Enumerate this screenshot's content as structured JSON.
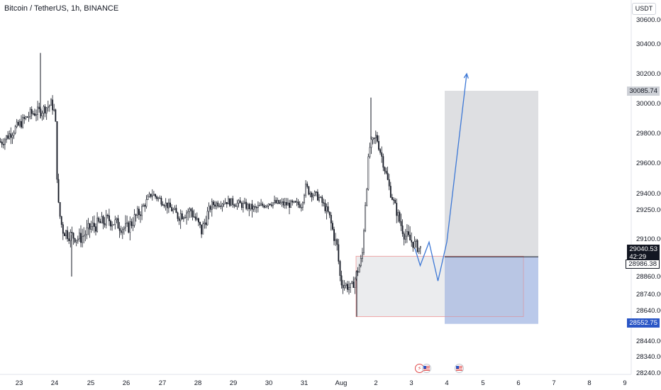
{
  "header": {
    "title": "Bitcoin / TetherUS, 1h, BINANCE"
  },
  "currency_label": "USDT",
  "price_labels": {
    "target": "30085.74",
    "current_price": "29040.53",
    "countdown": "42:29",
    "entry": "28986.38",
    "stop": "28552.75"
  },
  "colors": {
    "candle": "#131722",
    "target_zone": "#dcdde0",
    "stop_zone": "#aebfe6",
    "stop_zone_dark": "#9fb1e0",
    "projection": "#3d78d6",
    "accum_box": "#e4e5e8",
    "accum_border": "#f08a8a",
    "grid_text": "#131722",
    "axis_line": "#e0e3eb"
  },
  "event_icons": [
    "lightning-icon",
    "us-flag-icon",
    "us-flag-icon"
  ],
  "chart_data": {
    "type": "candlestick",
    "title": "Bitcoin / TetherUS, 1h, BINANCE",
    "xlabel": "",
    "ylabel": "",
    "x_ticks": [
      "23",
      "24",
      "25",
      "26",
      "27",
      "28",
      "29",
      "30",
      "31",
      "Aug",
      "2",
      "3",
      "4",
      "5",
      "6",
      "7",
      "8",
      "9"
    ],
    "y_ticks": [
      28240.0,
      28340.0,
      28440.0,
      28640.0,
      28740.0,
      28860.0,
      29100.0,
      29250.0,
      29400.0,
      29600.0,
      29800.0,
      30000.0,
      30200.0,
      30400.0,
      30600.0
    ],
    "ylim": [
      28220,
      30650
    ],
    "price_path": [
      [
        "23",
        29860
      ],
      [
        "23.3",
        29930
      ],
      [
        "23.6",
        29950
      ],
      [
        "23.9",
        30000
      ],
      [
        "24.0",
        29920
      ],
      [
        "24.05",
        29520
      ],
      [
        "24.1",
        29250
      ],
      [
        "24.2",
        29150
      ],
      [
        "24.4",
        29120
      ],
      [
        "24.7",
        29100
      ],
      [
        "25.0",
        29160
      ],
      [
        "25.5",
        29200
      ],
      [
        "26.0",
        29150
      ],
      [
        "26.4",
        29250
      ],
      [
        "26.7",
        29400
      ],
      [
        "27.0",
        29330
      ],
      [
        "27.4",
        29220
      ],
      [
        "27.8",
        29250
      ],
      [
        "28.1",
        29140
      ],
      [
        "28.4",
        29300
      ],
      [
        "28.8",
        29330
      ],
      [
        "29.2",
        29300
      ],
      [
        "29.6",
        29260
      ],
      [
        "30.0",
        29320
      ],
      [
        "30.5",
        29300
      ],
      [
        "30.9",
        29300
      ],
      [
        "31.0",
        29440
      ],
      [
        "31.4",
        29360
      ],
      [
        "31.7",
        29200
      ],
      [
        "31.9",
        29050
      ],
      [
        "Aug",
        28820
      ],
      [
        "1.3",
        28780
      ],
      [
        "1.6",
        28980
      ],
      [
        "1.8",
        29700
      ],
      [
        "2.0",
        29780
      ],
      [
        "2.2",
        29600
      ],
      [
        "2.4",
        29400
      ],
      [
        "2.6",
        29220
      ],
      [
        "2.8",
        29120
      ],
      [
        "3.0",
        29080
      ],
      [
        "3.2",
        29040
      ]
    ],
    "price_range_low": 28552.75,
    "price_range_high": 30650,
    "position": {
      "type": "long",
      "entry": 28986.38,
      "target": 30085.74,
      "stop": 28552.75,
      "accumulation_low": 28600,
      "accumulation_high": 28990
    },
    "projection_path": [
      [
        3.1,
        29040
      ],
      [
        3.25,
        28930
      ],
      [
        3.5,
        29080
      ],
      [
        3.75,
        28830
      ],
      [
        4.0,
        29080
      ],
      [
        4.55,
        30200
      ]
    ]
  }
}
